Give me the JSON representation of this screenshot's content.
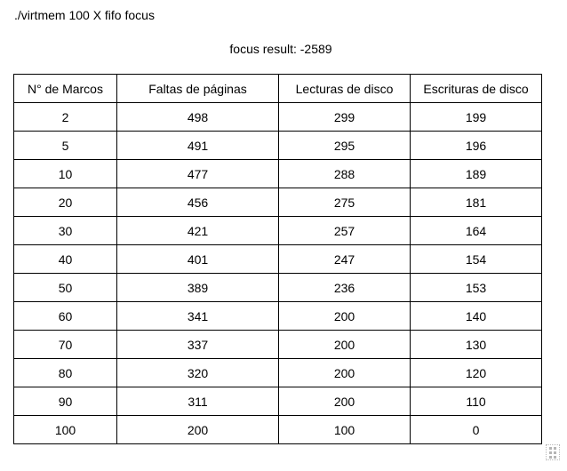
{
  "command": "./virtmem 100 X fifo focus",
  "result": "focus result: -2589",
  "table": {
    "headers": [
      "N° de Marcos",
      "Faltas de páginas",
      "Lecturas de disco",
      "Escrituras de disco"
    ],
    "rows": [
      [
        "2",
        "498",
        "299",
        "199"
      ],
      [
        "5",
        "491",
        "295",
        "196"
      ],
      [
        "10",
        "477",
        "288",
        "189"
      ],
      [
        "20",
        "456",
        "275",
        "181"
      ],
      [
        "30",
        "421",
        "257",
        "164"
      ],
      [
        "40",
        "401",
        "247",
        "154"
      ],
      [
        "50",
        "389",
        "236",
        "153"
      ],
      [
        "60",
        "341",
        "200",
        "140"
      ],
      [
        "70",
        "337",
        "200",
        "130"
      ],
      [
        "80",
        "320",
        "200",
        "120"
      ],
      [
        "90",
        "311",
        "200",
        "110"
      ],
      [
        "100",
        "200",
        "100",
        "0"
      ]
    ]
  },
  "resize_handle": {
    "icon": "grip-dots-icon"
  }
}
